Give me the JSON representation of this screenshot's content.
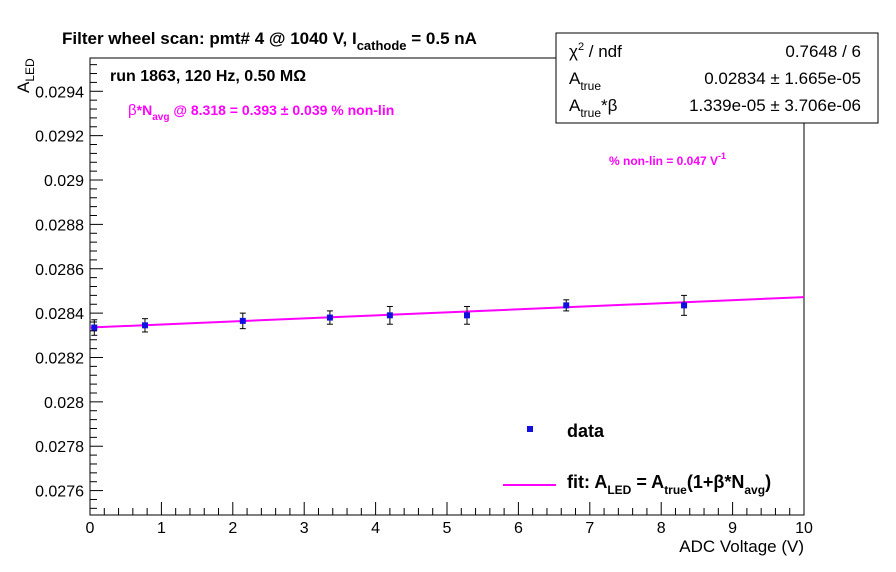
{
  "chart_data": {
    "type": "scatter",
    "title": {
      "main": "Filter wheel scan: pmt#   4 @  1040 V, I",
      "subscript": "cathode",
      "tail": " = 0.5 nA"
    },
    "run_info": "run 1863, 120 Hz, 0.50 MΩ",
    "beta_annotation": {
      "beta": "β",
      "n": "*N",
      "sub": "avg",
      "tail": " @ 8.318 = 0.393 ± 0.039 % non-lin"
    },
    "nonlin_annotation": {
      "text": "% non-lin = 0.047 V",
      "sup": "-1"
    },
    "xlabel": "ADC Voltage (V)",
    "ylabel": {
      "main": "A",
      "subscript": "LED"
    },
    "xlim": [
      0,
      10
    ],
    "ylim": [
      0.02749,
      0.02955
    ],
    "xticks": [
      0,
      1,
      2,
      3,
      4,
      5,
      6,
      7,
      8,
      9,
      10
    ],
    "xtick_labels": [
      "0",
      "1",
      "2",
      "3",
      "4",
      "5",
      "6",
      "7",
      "8",
      "9",
      "10"
    ],
    "yticks": [
      0.0276,
      0.0278,
      0.028,
      0.0282,
      0.0284,
      0.0286,
      0.0288,
      0.029,
      0.0292,
      0.0294
    ],
    "ytick_labels": [
      "0.0276",
      "0.0278",
      "0.028",
      "0.0282",
      "0.0284",
      "0.0286",
      "0.0288",
      "0.029",
      "0.0292",
      "0.0294"
    ],
    "series": [
      {
        "name": "data",
        "color": "#1010e0",
        "points": [
          {
            "x": 0.06,
            "y": 0.028335,
            "err": 3.5e-05
          },
          {
            "x": 0.77,
            "y": 0.028345,
            "err": 3e-05
          },
          {
            "x": 2.14,
            "y": 0.028365,
            "err": 3.5e-05
          },
          {
            "x": 3.36,
            "y": 0.02838,
            "err": 3e-05
          },
          {
            "x": 4.2,
            "y": 0.02839,
            "err": 4e-05
          },
          {
            "x": 5.28,
            "y": 0.02839,
            "err": 4e-05
          },
          {
            "x": 6.67,
            "y": 0.028435,
            "err": 2.5e-05
          },
          {
            "x": 8.32,
            "y": 0.028435,
            "err": 4.5e-05
          }
        ]
      },
      {
        "name": "fit",
        "color": "#ff00ff",
        "line": {
          "x": [
            0,
            10
          ],
          "y": [
            0.028335,
            0.028472
          ]
        }
      }
    ],
    "legend": {
      "data_label": "data",
      "fit_label": {
        "a": "fit: A",
        "a_sub": "LED",
        "b": " = A",
        "b_sub": "true",
        "c": "(1+β*N",
        "c_sub": "avg",
        "d": ")"
      }
    },
    "stats_box": {
      "rows": [
        {
          "label_main": "χ",
          "label_sup": "2",
          "label_tail": " / ndf",
          "value": "0.7648 / 6"
        },
        {
          "label_main": "A",
          "label_sub": "true",
          "label_tail": "",
          "value": "0.02834 ± 1.665e-05"
        },
        {
          "label_main": "A",
          "label_sub": "true",
          "label_tail": "*β",
          "value": "1.339e-05 ± 3.706e-06"
        }
      ]
    },
    "colors": {
      "data": "#1010e0",
      "fit": "#ff00ff",
      "axis": "#000000"
    },
    "grid": false,
    "legend_position": "bottom-right",
    "stats_position": "top-right"
  }
}
